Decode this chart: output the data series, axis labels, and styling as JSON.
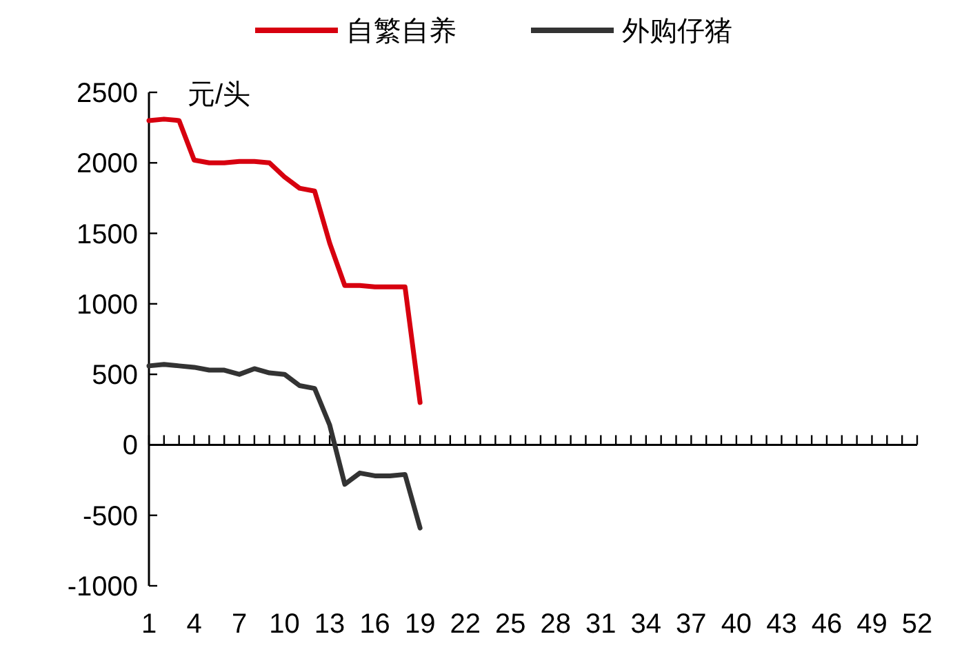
{
  "chart_data": {
    "type": "line",
    "ylabel": "元/头",
    "legend": "top",
    "marker": "none",
    "line_style": "solid",
    "x": [
      1,
      2,
      3,
      4,
      5,
      6,
      7,
      8,
      9,
      10,
      11,
      12,
      13,
      14,
      15,
      16,
      17,
      18,
      19
    ],
    "xlim": [
      1,
      52
    ],
    "xticks": [
      1,
      {
        "value": 2,
        "label": null
      },
      {
        "value": 3,
        "label": null
      },
      4,
      {
        "value": 5,
        "label": null
      },
      {
        "value": 6,
        "label": null
      },
      7,
      {
        "value": 8,
        "label": null
      },
      {
        "value": 9,
        "label": null
      },
      10,
      {
        "value": 11,
        "label": null
      },
      {
        "value": 12,
        "label": null
      },
      13,
      {
        "value": 14,
        "label": null
      },
      {
        "value": 15,
        "label": null
      },
      16,
      {
        "value": 17,
        "label": null
      },
      {
        "value": 18,
        "label": null
      },
      19,
      {
        "value": 20,
        "label": null
      },
      {
        "value": 21,
        "label": null
      },
      22,
      {
        "value": 23,
        "label": null
      },
      {
        "value": 24,
        "label": null
      },
      25,
      {
        "value": 26,
        "label": null
      },
      {
        "value": 27,
        "label": null
      },
      28,
      {
        "value": 29,
        "label": null
      },
      {
        "value": 30,
        "label": null
      },
      31,
      {
        "value": 32,
        "label": null
      },
      {
        "value": 33,
        "label": null
      },
      34,
      {
        "value": 35,
        "label": null
      },
      {
        "value": 36,
        "label": null
      },
      37,
      {
        "value": 38,
        "label": null
      },
      {
        "value": 39,
        "label": null
      },
      40,
      {
        "value": 41,
        "label": null
      },
      {
        "value": 42,
        "label": null
      },
      43,
      {
        "value": 44,
        "label": null
      },
      {
        "value": 45,
        "label": null
      },
      46,
      {
        "value": 47,
        "label": null
      },
      {
        "value": 48,
        "label": null
      },
      49,
      {
        "value": 50,
        "label": null
      },
      {
        "value": 51,
        "label": null
      },
      52
    ],
    "ylim": [
      -1000,
      2500
    ],
    "yticks": [
      -1000,
      -500,
      0,
      500,
      1000,
      1500,
      2000,
      2500
    ],
    "series": [
      {
        "name": "自繁自养",
        "color": "#d7000f",
        "values": [
          2300,
          2310,
          2300,
          2020,
          2000,
          2000,
          2010,
          2010,
          2000,
          1900,
          1820,
          1800,
          1430,
          1130,
          1130,
          1120,
          1120,
          1120,
          300
        ]
      },
      {
        "name": "外购仔猪",
        "color": "#333333",
        "values": [
          560,
          570,
          560,
          550,
          530,
          530,
          500,
          540,
          510,
          500,
          420,
          400,
          140,
          -280,
          -200,
          -220,
          -220,
          -210,
          -590
        ]
      }
    ]
  }
}
